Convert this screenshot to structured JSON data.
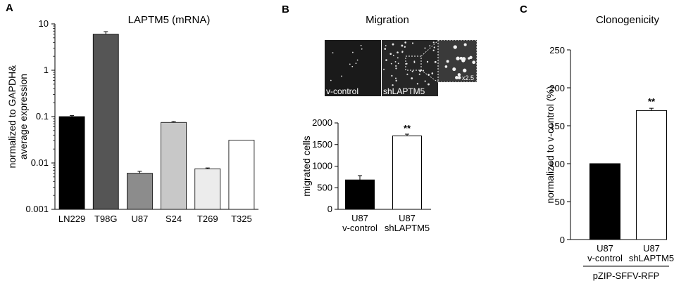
{
  "panels": [
    {
      "letter": "A",
      "title": "LAPTM5 (mRNA)"
    },
    {
      "letter": "B",
      "title": "Migration"
    },
    {
      "letter": "C",
      "title": "Clonogenicity"
    }
  ],
  "micrograph": {
    "left_label": "v-control",
    "right_label": "shLAPTM5",
    "zoom_label": "x2.5"
  },
  "chart_data": [
    {
      "type": "bar",
      "title": "LAPTM5 (mRNA)",
      "ylabel_line1": "normalized to GAPDH&",
      "ylabel_line2": "average expression",
      "yscale": "log",
      "ylim": [
        0.001,
        10
      ],
      "yticks": [
        "0.001",
        "0.01",
        "0.1",
        "1",
        "10"
      ],
      "categories": [
        "LN229",
        "T98G",
        "U87",
        "S24",
        "T269",
        "T325"
      ],
      "values": [
        0.1,
        6.0,
        0.006,
        0.075,
        0.0075,
        0.031
      ],
      "errors": [
        0.005,
        0.8,
        0.0006,
        0.003,
        0.0003,
        0
      ],
      "colors": [
        "#000000",
        "#555555",
        "#8c8c8c",
        "#c8c8c8",
        "#ececec",
        "#ffffff"
      ]
    },
    {
      "type": "bar",
      "ylabel": "migrated cells",
      "ylim": [
        0,
        2000
      ],
      "yticks": [
        "0",
        "500",
        "1000",
        "1500",
        "2000"
      ],
      "categories": [
        [
          "U87",
          "v-control"
        ],
        [
          "U87",
          "shLAPTM5"
        ]
      ],
      "values": [
        680,
        1700
      ],
      "errors": [
        100,
        40
      ],
      "colors": [
        "#000000",
        "#ffffff"
      ],
      "significance": [
        "",
        "**"
      ]
    },
    {
      "type": "bar",
      "title": "Clonogenicity",
      "ylabel": "normalized to v-control    (%)",
      "ylim": [
        0,
        250
      ],
      "yticks": [
        "0",
        "50",
        "100",
        "150",
        "200",
        "250"
      ],
      "categories": [
        [
          "U87",
          "v-control"
        ],
        [
          "U87",
          "shLAPTM5"
        ]
      ],
      "values": [
        100,
        170
      ],
      "errors": [
        0,
        3
      ],
      "colors": [
        "#000000",
        "#ffffff"
      ],
      "significance": [
        "",
        "**"
      ],
      "group_label": "pZIP-SFFV-RFP"
    }
  ]
}
